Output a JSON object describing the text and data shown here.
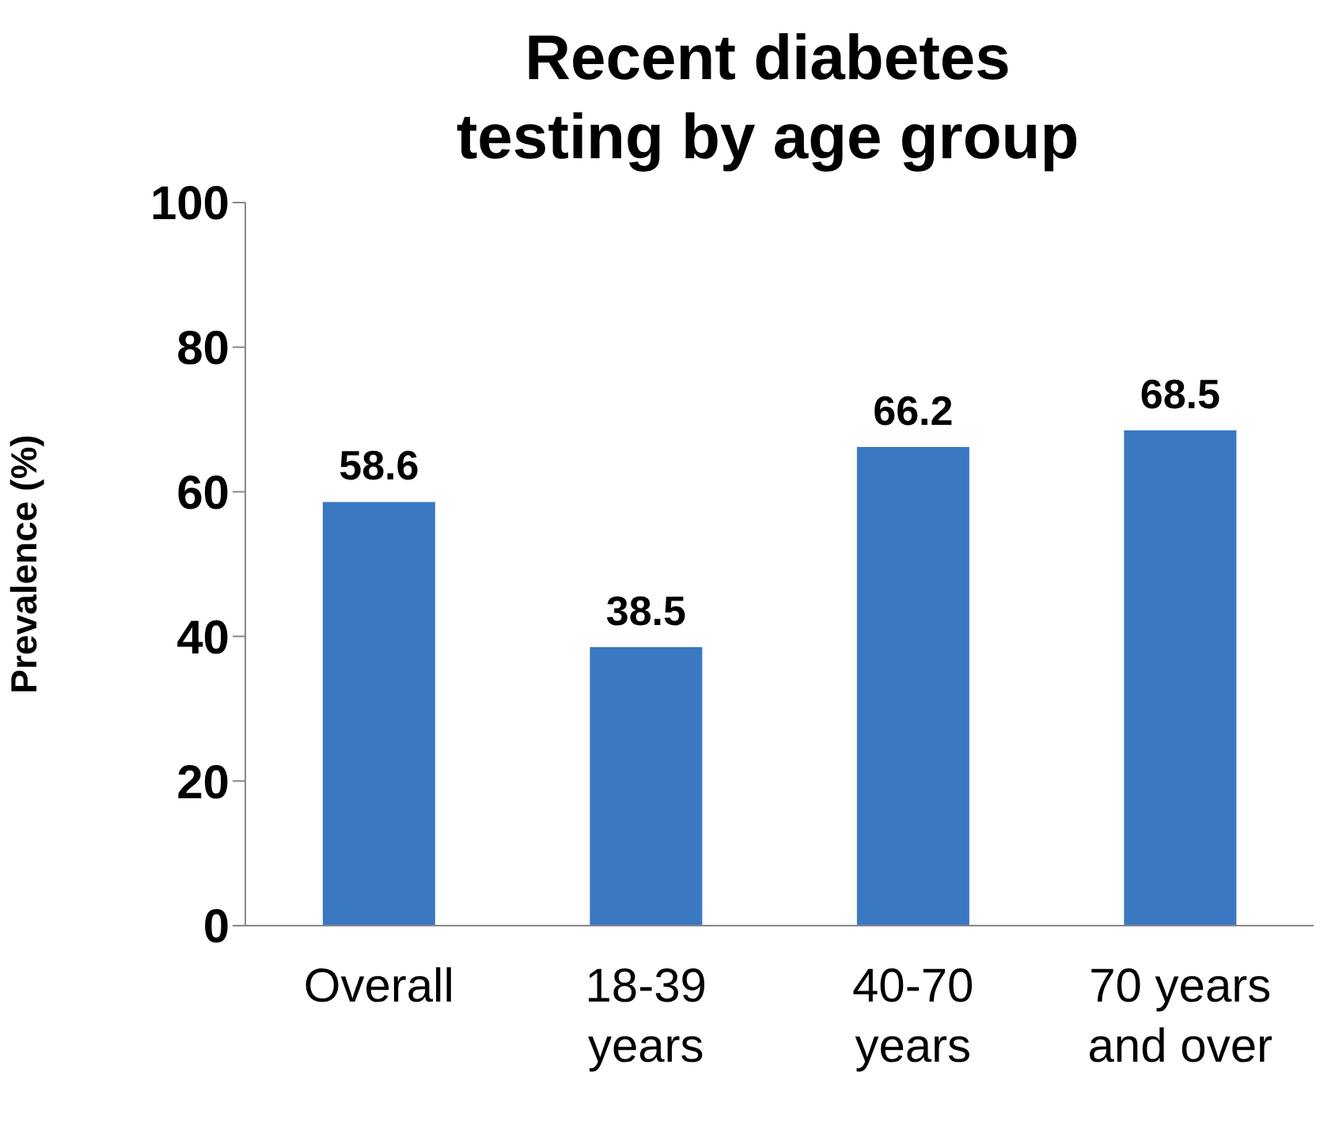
{
  "chart_data": {
    "type": "bar",
    "title": "Recent diabetes\ntesting by age group",
    "ylabel": "Prevalence (%)",
    "categories": [
      "Overall",
      "18-39 years",
      "40-70 years",
      "70 years and over"
    ],
    "values": [
      58.6,
      38.5,
      66.2,
      68.5
    ],
    "color": "#3a78c2",
    "ylim": [
      0,
      100
    ],
    "yticks": [
      0,
      20,
      40,
      60,
      80,
      100
    ],
    "grid": false,
    "data_labels": true
  }
}
